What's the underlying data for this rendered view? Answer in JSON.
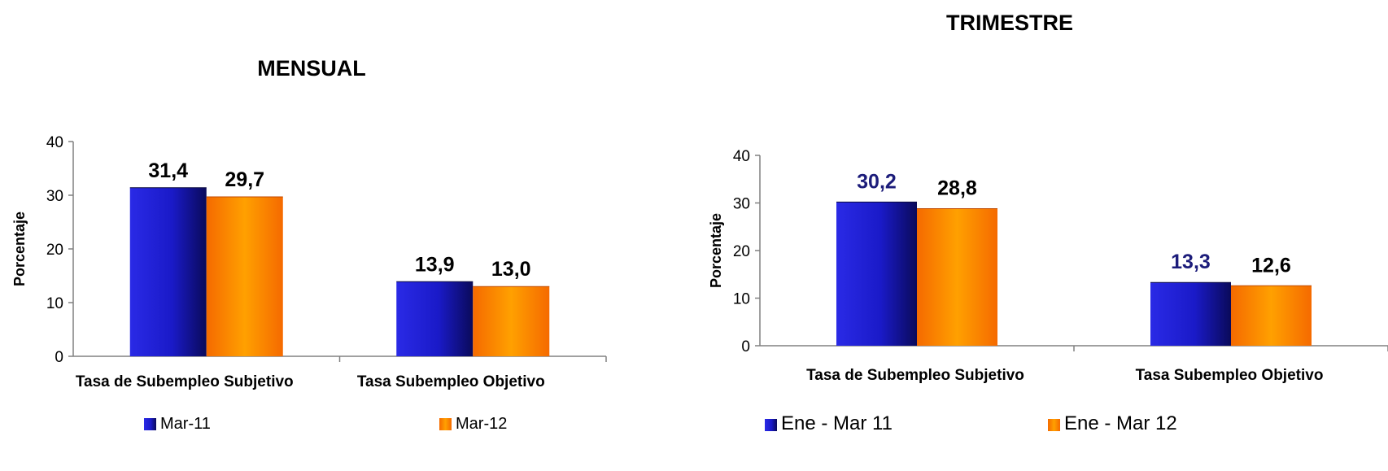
{
  "colors": {
    "series_blue_light": "#2a2ae6",
    "series_blue_dark": "#0a0a5a",
    "series_orange_light": "#ffa000",
    "series_orange_dark": "#f56a00",
    "label_dark": "#000000",
    "label_navy": "#1c1c7a"
  },
  "chart_data": [
    {
      "type": "bar",
      "title": "MENSUAL",
      "xlabel": "",
      "ylabel": "Porcentaje",
      "ylim": [
        0,
        40
      ],
      "yticks": [
        0,
        10,
        20,
        30,
        40
      ],
      "categories": [
        "Tasa de Subempleo Subjetivo",
        "Tasa Subempleo Objetivo"
      ],
      "series": [
        {
          "name": "Mar-11",
          "values": [
            31.4,
            13.9
          ],
          "labels": [
            "31,4",
            "13,9"
          ]
        },
        {
          "name": "Mar-12",
          "values": [
            29.7,
            13.0
          ],
          "labels": [
            "29,7",
            "13,0"
          ]
        }
      ],
      "legend": "bottom",
      "grid": false
    },
    {
      "type": "bar",
      "title": "TRIMESTRE",
      "xlabel": "",
      "ylabel": "Porcentaje",
      "ylim": [
        0,
        40
      ],
      "yticks": [
        0,
        10,
        20,
        30,
        40
      ],
      "categories": [
        "Tasa de Subempleo Subjetivo",
        "Tasa Subempleo Objetivo"
      ],
      "series": [
        {
          "name": "Ene - Mar 11",
          "values": [
            30.2,
            13.3
          ],
          "labels": [
            "30,2",
            "13,3"
          ]
        },
        {
          "name": "Ene - Mar 12",
          "values": [
            28.8,
            12.6
          ],
          "labels": [
            "28,8",
            "12,6"
          ]
        }
      ],
      "legend": "bottom",
      "grid": false
    }
  ]
}
